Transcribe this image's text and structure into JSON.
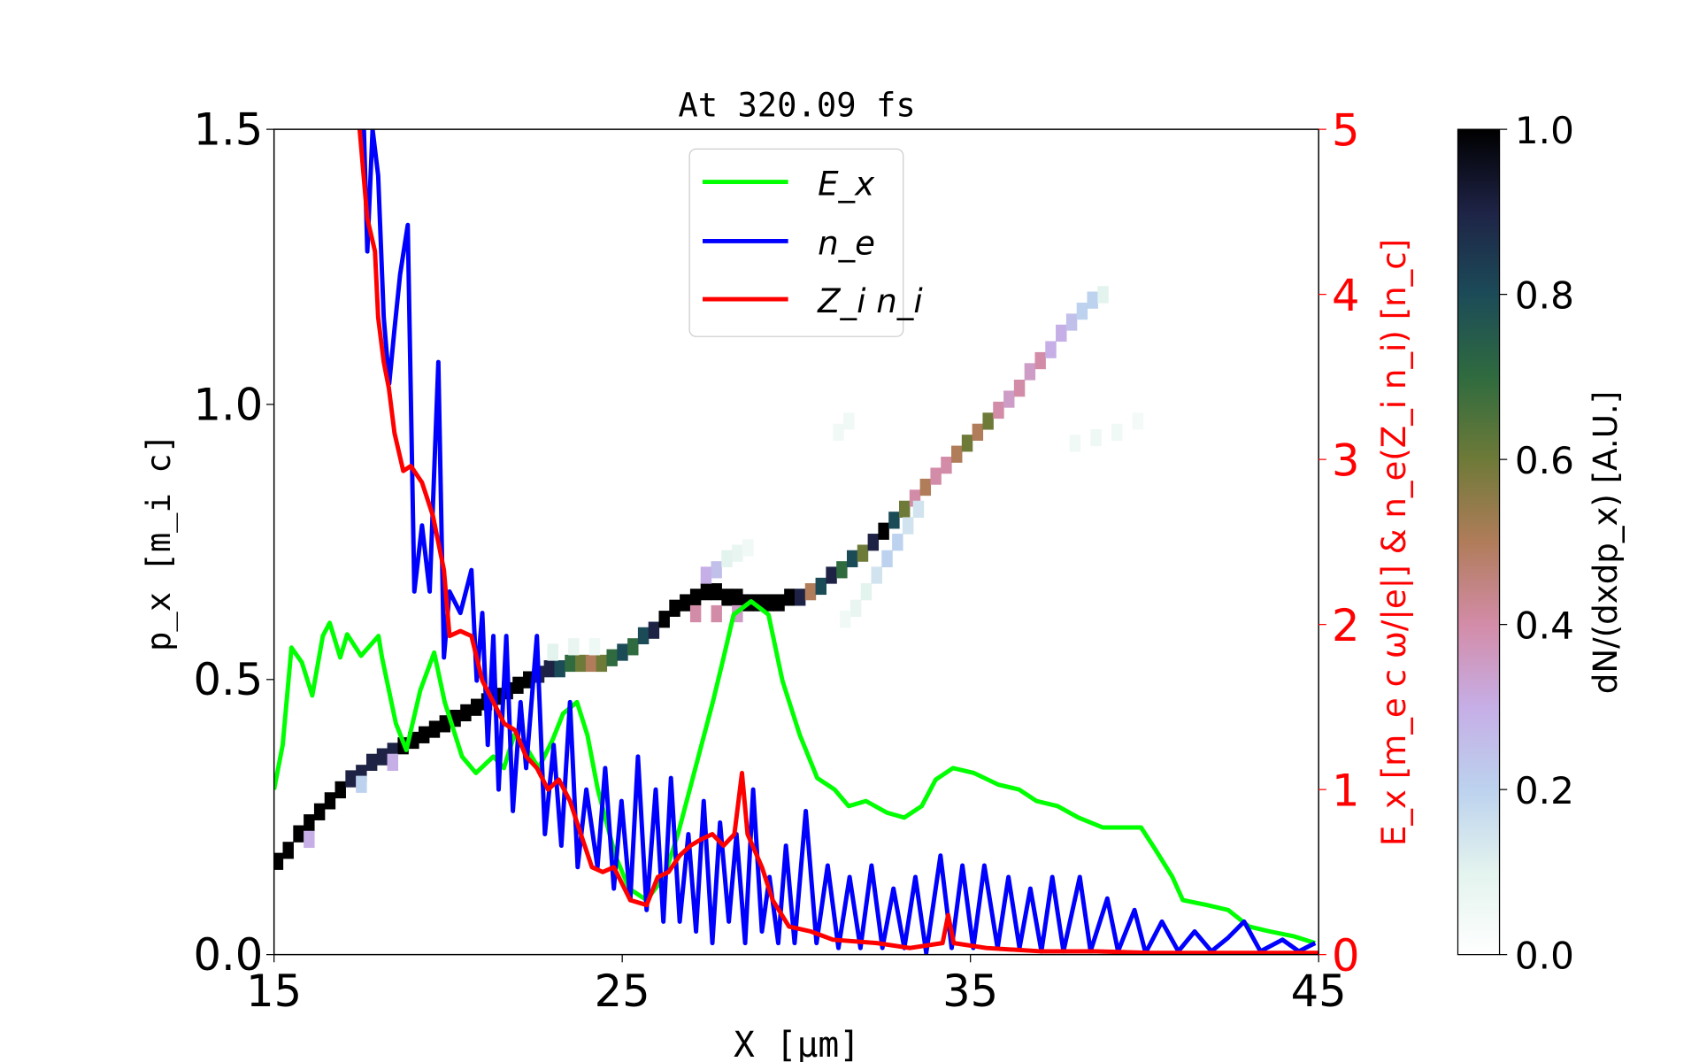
{
  "chart_data": {
    "type": "heatmap+line",
    "title": "At 320.09 fs",
    "xlabel": "X [μm]",
    "ylabel": "p_x [m_i c]",
    "y2label": "E_x [m_e c ω/|e|] & n_e(Z_i n_i) [n_c]",
    "colorbar_label": "dN/(dxdp_x) [A.U.]",
    "xlim": [
      15,
      45
    ],
    "ylim": [
      0,
      1.5
    ],
    "y2lim": [
      0,
      5
    ],
    "clim": [
      0,
      1
    ],
    "grid": false,
    "legend_placement": "upper-center",
    "x_ticks": [
      "15",
      "25",
      "35",
      "45"
    ],
    "y_ticks": [
      "0.0",
      "0.5",
      "1.0",
      "1.5"
    ],
    "y2_ticks": [
      "0",
      "1",
      "2",
      "3",
      "4",
      "5"
    ],
    "colorbar_ticks": [
      "0.0",
      "0.2",
      "0.4",
      "0.6",
      "0.8",
      "1.0"
    ],
    "colors": {
      "Ex": "#00ff00",
      "ne": "#0000ff",
      "Zini": "#ff0000",
      "right_axis": "#ff0000"
    },
    "series": [
      {
        "name": "E_x",
        "axis": "right",
        "color": "#00ff00",
        "x": [
          15.0,
          15.25,
          15.5,
          15.8,
          16.1,
          16.4,
          16.6,
          16.9,
          17.1,
          17.5,
          18.0,
          18.1,
          18.5,
          18.8,
          19.2,
          19.6,
          19.9,
          20.4,
          20.8,
          21.3,
          21.6,
          21.9,
          22.2,
          22.6,
          23.0,
          23.3,
          23.7,
          24.0,
          24.3,
          24.8,
          25.2,
          25.7,
          26.2,
          26.6,
          27.1,
          27.6,
          27.9,
          28.2,
          28.7,
          29.2,
          29.6,
          30.1,
          30.6,
          31.1,
          31.5,
          32.0,
          32.6,
          33.1,
          33.6,
          34.0,
          34.5,
          35.1,
          35.8,
          36.4,
          36.9,
          37.5,
          38.1,
          38.8,
          39.4,
          39.9,
          40.3,
          40.8,
          41.1,
          41.8,
          42.4,
          43.0,
          43.6,
          44.3,
          44.9
        ],
        "y": [
          1.0,
          1.27,
          1.86,
          1.77,
          1.57,
          1.93,
          2.01,
          1.8,
          1.94,
          1.81,
          1.93,
          1.8,
          1.4,
          1.24,
          1.6,
          1.83,
          1.53,
          1.2,
          1.1,
          1.2,
          1.13,
          1.33,
          1.27,
          1.13,
          1.3,
          1.46,
          1.53,
          1.33,
          1.0,
          0.6,
          0.4,
          0.33,
          0.47,
          0.73,
          1.13,
          1.53,
          1.79,
          2.06,
          2.14,
          2.06,
          1.66,
          1.33,
          1.07,
          1.0,
          0.9,
          0.93,
          0.86,
          0.83,
          0.9,
          1.06,
          1.13,
          1.1,
          1.03,
          1.0,
          0.93,
          0.9,
          0.83,
          0.77,
          0.77,
          0.77,
          0.64,
          0.47,
          0.33,
          0.3,
          0.27,
          0.17,
          0.14,
          0.11,
          0.07
        ]
      },
      {
        "name": "n_e",
        "axis": "right",
        "color": "#0000ff",
        "x": [
          17.58,
          17.68,
          17.83,
          17.99,
          18.15,
          18.31,
          18.46,
          18.62,
          18.84,
          19.03,
          19.25,
          19.47,
          19.72,
          19.88,
          20.04,
          20.35,
          20.67,
          20.82,
          20.98,
          21.14,
          21.3,
          21.45,
          21.67,
          21.86,
          22.08,
          22.24,
          22.55,
          22.78,
          23.03,
          23.25,
          23.5,
          23.72,
          23.97,
          24.29,
          24.51,
          24.76,
          24.98,
          25.23,
          25.45,
          25.7,
          25.96,
          26.18,
          26.4,
          26.65,
          26.9,
          27.12,
          27.34,
          27.59,
          27.81,
          28.06,
          28.28,
          28.53,
          28.76,
          29.01,
          29.23,
          29.48,
          29.7,
          29.95,
          30.27,
          30.58,
          30.9,
          31.21,
          31.53,
          31.84,
          32.16,
          32.47,
          32.79,
          33.1,
          33.42,
          33.73,
          34.14,
          34.46,
          34.77,
          35.08,
          35.4,
          35.78,
          36.09,
          36.41,
          36.72,
          37.04,
          37.35,
          37.67,
          38.14,
          38.45,
          38.93,
          39.24,
          39.71,
          40.03,
          40.5,
          40.97,
          41.44,
          41.92,
          42.39,
          42.86,
          43.33,
          43.96,
          44.43,
          44.9
        ],
        "y": [
          5.0,
          4.26,
          5.0,
          4.72,
          3.86,
          3.46,
          3.79,
          4.12,
          4.42,
          2.2,
          2.6,
          2.2,
          3.59,
          1.8,
          2.2,
          2.07,
          2.33,
          1.66,
          2.07,
          1.27,
          1.93,
          1.0,
          1.93,
          0.87,
          1.53,
          1.13,
          1.93,
          0.73,
          1.27,
          0.66,
          1.53,
          0.53,
          1.0,
          0.53,
          1.13,
          0.4,
          0.93,
          0.33,
          1.2,
          0.27,
          1.0,
          0.2,
          1.07,
          0.2,
          0.73,
          0.14,
          0.93,
          0.07,
          0.8,
          0.2,
          0.73,
          0.07,
          1.0,
          0.14,
          0.47,
          0.07,
          0.66,
          0.07,
          0.87,
          0.07,
          0.54,
          0.04,
          0.47,
          0.04,
          0.54,
          0.04,
          0.4,
          0.04,
          0.47,
          0.01,
          0.6,
          0.04,
          0.54,
          0.04,
          0.54,
          0.04,
          0.47,
          0.04,
          0.4,
          0.02,
          0.47,
          0.02,
          0.47,
          0.02,
          0.34,
          0.02,
          0.27,
          0.01,
          0.2,
          0.02,
          0.14,
          0.02,
          0.1,
          0.2,
          0.02,
          0.09,
          0.02,
          0.07
        ]
      },
      {
        "name": "Z_i n_i",
        "axis": "right",
        "color": "#ff0000",
        "x": [
          17.46,
          17.68,
          17.9,
          17.99,
          18.15,
          18.3,
          18.46,
          18.71,
          18.93,
          19.25,
          19.56,
          19.88,
          20.04,
          20.35,
          20.67,
          20.98,
          21.3,
          21.61,
          21.92,
          22.24,
          22.55,
          22.87,
          23.18,
          23.5,
          23.81,
          24.13,
          24.44,
          24.76,
          25.23,
          25.7,
          26.02,
          26.33,
          26.65,
          26.96,
          27.28,
          27.59,
          27.91,
          28.22,
          28.44,
          28.6,
          29.01,
          29.32,
          29.79,
          30.42,
          31.05,
          32.31,
          33.26,
          34.2,
          34.36,
          34.52,
          35.46,
          37.03,
          38.61,
          40.18,
          45.0
        ],
        "y": [
          5.0,
          4.46,
          4.26,
          3.86,
          3.59,
          3.43,
          3.16,
          2.93,
          2.96,
          2.86,
          2.66,
          2.33,
          1.93,
          1.96,
          1.93,
          1.66,
          1.53,
          1.4,
          1.36,
          1.2,
          1.13,
          1.0,
          1.06,
          0.93,
          0.73,
          0.53,
          0.5,
          0.53,
          0.33,
          0.3,
          0.47,
          0.5,
          0.6,
          0.66,
          0.7,
          0.73,
          0.66,
          0.73,
          1.1,
          0.73,
          0.53,
          0.33,
          0.17,
          0.14,
          0.09,
          0.07,
          0.04,
          0.07,
          0.24,
          0.07,
          0.04,
          0.02,
          0.02,
          0.01,
          0.01
        ]
      }
    ],
    "heatmap_cells": [
      [
        15.1,
        0.17,
        1
      ],
      [
        15.4,
        0.19,
        1
      ],
      [
        15.7,
        0.22,
        1
      ],
      [
        16.0,
        0.24,
        1
      ],
      [
        16.3,
        0.26,
        1
      ],
      [
        16.6,
        0.28,
        1
      ],
      [
        16.9,
        0.3,
        1
      ],
      [
        17.2,
        0.32,
        0.9
      ],
      [
        17.5,
        0.33,
        0.9
      ],
      [
        17.8,
        0.35,
        0.9
      ],
      [
        18.1,
        0.36,
        0.9
      ],
      [
        18.4,
        0.37,
        0.9
      ],
      [
        18.7,
        0.38,
        1
      ],
      [
        19.0,
        0.39,
        1
      ],
      [
        19.3,
        0.4,
        1
      ],
      [
        19.6,
        0.41,
        1
      ],
      [
        19.9,
        0.42,
        1
      ],
      [
        20.2,
        0.43,
        1
      ],
      [
        20.5,
        0.44,
        1
      ],
      [
        20.8,
        0.45,
        1
      ],
      [
        21.1,
        0.46,
        1
      ],
      [
        21.4,
        0.47,
        1
      ],
      [
        21.7,
        0.48,
        1
      ],
      [
        22.0,
        0.49,
        1
      ],
      [
        22.3,
        0.5,
        1
      ],
      [
        22.6,
        0.51,
        0.9
      ],
      [
        22.9,
        0.52,
        0.9
      ],
      [
        23.2,
        0.52,
        0.8
      ],
      [
        23.5,
        0.53,
        0.7
      ],
      [
        23.8,
        0.53,
        0.6
      ],
      [
        24.1,
        0.53,
        0.5
      ],
      [
        24.4,
        0.53,
        0.6
      ],
      [
        24.7,
        0.54,
        0.7
      ],
      [
        25.0,
        0.55,
        0.8
      ],
      [
        25.3,
        0.56,
        0.7
      ],
      [
        25.6,
        0.58,
        0.8
      ],
      [
        25.9,
        0.59,
        0.9
      ],
      [
        26.2,
        0.61,
        1
      ],
      [
        26.5,
        0.63,
        1
      ],
      [
        26.8,
        0.64,
        1
      ],
      [
        27.1,
        0.65,
        1
      ],
      [
        27.4,
        0.66,
        1
      ],
      [
        27.7,
        0.66,
        1
      ],
      [
        28.0,
        0.65,
        1
      ],
      [
        28.3,
        0.65,
        1
      ],
      [
        28.6,
        0.64,
        1
      ],
      [
        28.9,
        0.64,
        1
      ],
      [
        29.2,
        0.64,
        1
      ],
      [
        29.5,
        0.64,
        1
      ],
      [
        29.8,
        0.65,
        1
      ],
      [
        30.1,
        0.65,
        0.9
      ],
      [
        30.4,
        0.66,
        0.5
      ],
      [
        30.7,
        0.67,
        0.8
      ],
      [
        31.0,
        0.69,
        0.9
      ],
      [
        31.3,
        0.7,
        0.7
      ],
      [
        31.6,
        0.72,
        0.8
      ],
      [
        31.9,
        0.73,
        0.6
      ],
      [
        32.2,
        0.75,
        0.9
      ],
      [
        32.5,
        0.77,
        1
      ],
      [
        32.8,
        0.79,
        0.8
      ],
      [
        33.1,
        0.81,
        0.6
      ],
      [
        33.4,
        0.83,
        0.4
      ],
      [
        33.7,
        0.85,
        0.5
      ],
      [
        34.0,
        0.87,
        0.4
      ],
      [
        34.3,
        0.89,
        0.4
      ],
      [
        34.6,
        0.91,
        0.5
      ],
      [
        34.9,
        0.93,
        0.6
      ],
      [
        35.2,
        0.95,
        0.5
      ],
      [
        35.5,
        0.97,
        0.6
      ],
      [
        35.8,
        0.99,
        0.4
      ],
      [
        36.1,
        1.01,
        0.35
      ],
      [
        36.4,
        1.03,
        0.4
      ],
      [
        36.7,
        1.06,
        0.35
      ],
      [
        37.0,
        1.08,
        0.4
      ],
      [
        37.3,
        1.1,
        0.3
      ],
      [
        37.6,
        1.13,
        0.3
      ],
      [
        37.9,
        1.15,
        0.25
      ],
      [
        38.2,
        1.17,
        0.2
      ],
      [
        38.5,
        1.19,
        0.2
      ],
      [
        38.8,
        1.2,
        0.1
      ],
      [
        31.4,
        0.61,
        0.05
      ],
      [
        31.7,
        0.63,
        0.08
      ],
      [
        32.0,
        0.66,
        0.1
      ],
      [
        32.3,
        0.69,
        0.15
      ],
      [
        32.6,
        0.72,
        0.2
      ],
      [
        32.9,
        0.75,
        0.2
      ],
      [
        33.2,
        0.78,
        0.15
      ],
      [
        33.5,
        0.81,
        0.15
      ],
      [
        27.4,
        0.69,
        0.3
      ],
      [
        27.7,
        0.7,
        0.25
      ],
      [
        28.0,
        0.72,
        0.1
      ],
      [
        28.3,
        0.73,
        0.08
      ],
      [
        28.6,
        0.74,
        0.05
      ],
      [
        27.1,
        0.62,
        0.4
      ],
      [
        27.7,
        0.62,
        0.4
      ],
      [
        28.3,
        0.62,
        0.35
      ],
      [
        23.0,
        0.55,
        0.1
      ],
      [
        23.6,
        0.56,
        0.08
      ],
      [
        24.2,
        0.56,
        0.06
      ],
      [
        16.0,
        0.21,
        0.3
      ],
      [
        17.5,
        0.31,
        0.2
      ],
      [
        18.4,
        0.35,
        0.3
      ],
      [
        31.2,
        0.95,
        0.05
      ],
      [
        31.5,
        0.97,
        0.05
      ],
      [
        38.0,
        0.93,
        0.05
      ],
      [
        38.6,
        0.94,
        0.06
      ],
      [
        39.2,
        0.95,
        0.05
      ],
      [
        39.8,
        0.97,
        0.04
      ]
    ]
  }
}
